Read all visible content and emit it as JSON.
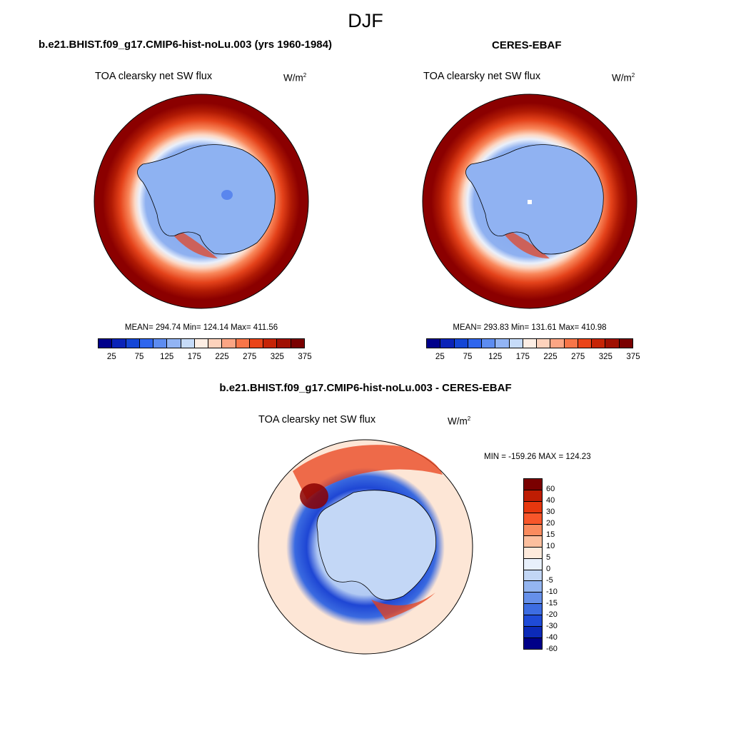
{
  "figure": {
    "season": "DJF"
  },
  "panels": {
    "model": {
      "title": "b.e21.BHIST.f09_g17.CMIP6-hist-noLu.003 (yrs 1960-1984)",
      "variable": "TOA clearsky net SW flux",
      "units_base": "W/m",
      "units_exp": "2",
      "stats": "MEAN= 294.74  Min= 124.14  Max= 411.56"
    },
    "obs": {
      "title": "CERES-EBAF",
      "variable": "TOA clearsky net SW flux",
      "units_base": "W/m",
      "units_exp": "2",
      "stats": "MEAN= 293.83  Min= 131.61  Max= 410.98"
    },
    "diff": {
      "title": "b.e21.BHIST.f09_g17.CMIP6-hist-noLu.003 - CERES-EBAF",
      "variable": "TOA clearsky net SW flux",
      "units_base": "W/m",
      "units_exp": "2",
      "stats": "MIN = -159.26 MAX = 124.23"
    }
  },
  "colorbars": {
    "absolute": {
      "colors": [
        "#00008b",
        "#0a23b8",
        "#1446d6",
        "#2f66ee",
        "#5d8cf0",
        "#92b4f4",
        "#c6dbf8",
        "#fdeee4",
        "#fdd2bc",
        "#fba584",
        "#f77548",
        "#ea4418",
        "#c62406",
        "#a01002",
        "#7a0000"
      ],
      "tick_labels": [
        "25",
        "75",
        "125",
        "175",
        "225",
        "275",
        "325",
        "375"
      ]
    },
    "difference": {
      "colors": [
        "#7a0000",
        "#be1d03",
        "#e6370e",
        "#f8562a",
        "#fa8b5e",
        "#fcbf9e",
        "#feeadc",
        "#e8f0fb",
        "#c2d6f5",
        "#94b5f0",
        "#6690ea",
        "#3d6de2",
        "#1f4bd7",
        "#0c2ab8",
        "#000088"
      ],
      "labels": [
        "60",
        "40",
        "30",
        "20",
        "15",
        "10",
        "5",
        "0",
        "-5",
        "-10",
        "-15",
        "-20",
        "-30",
        "-40",
        "-60"
      ]
    }
  }
}
